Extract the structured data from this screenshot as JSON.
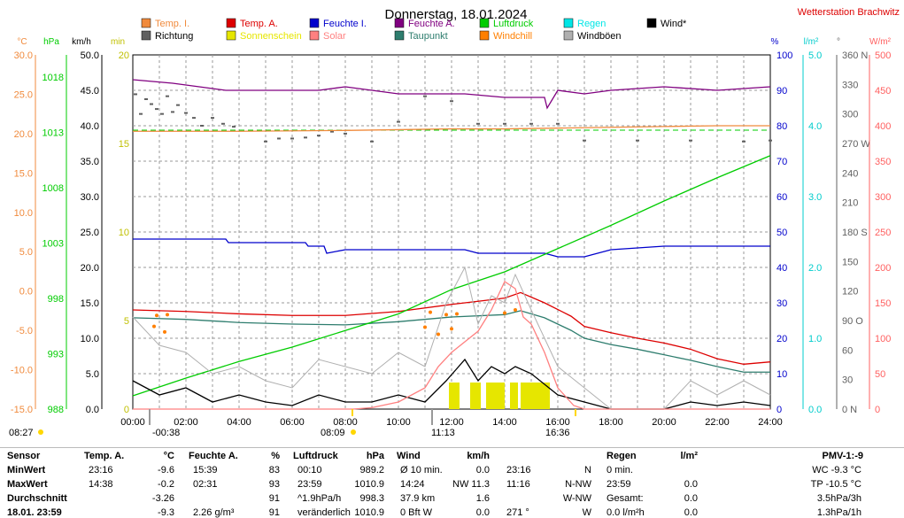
{
  "header": {
    "title": "Donnerstag, 18.01.2024",
    "station": "Wetterstation Brachwitz"
  },
  "colors": {
    "temp_i": "#f08a3c",
    "temp_a": "#dd0000",
    "feuchte_i": "#0000cc",
    "feuchte_a": "#800080",
    "luftdruck": "#00cc00",
    "regen": "#00e6e6",
    "wind": "#000000",
    "richtung": "#606060",
    "sonnenschein": "#e6e600",
    "solar": "#ff8080",
    "taupunkt": "#2e7d6e",
    "windchill": "#ff7f00",
    "windboeen": "#b0b0b0"
  },
  "legend": [
    {
      "label": "Temp. I.",
      "color": "#f08a3c"
    },
    {
      "label": "Temp. A.",
      "color": "#dd0000"
    },
    {
      "label": "Feuchte I.",
      "color": "#0000cc"
    },
    {
      "label": "Feuchte A.",
      "color": "#800080"
    },
    {
      "label": "Luftdruck",
      "color": "#00cc00"
    },
    {
      "label": "Regen",
      "color": "#00e6e6"
    },
    {
      "label": "Wind*",
      "color": "#000000"
    },
    {
      "label": "Richtung",
      "color": "#606060"
    },
    {
      "label": "Sonnenschein",
      "color": "#e6e600"
    },
    {
      "label": "Solar",
      "color": "#ff8080"
    },
    {
      "label": "Taupunkt",
      "color": "#2e7d6e"
    },
    {
      "label": "Windchill",
      "color": "#ff7f00"
    },
    {
      "label": "Windböen",
      "color": "#b0b0b0"
    }
  ],
  "markers": {
    "sunrise": "08:27",
    "sunset": "16:36",
    "moonset": "00:38",
    "moonrise": "11:13",
    "solar_noon": "08:09"
  },
  "chart_data": {
    "type": "line",
    "title": "Donnerstag, 18.01.2024",
    "x_ticks": [
      "00:00",
      "02:00",
      "04:00",
      "06:00",
      "08:00",
      "10:00",
      "12:00",
      "14:00",
      "16:00",
      "18:00",
      "20:00",
      "22:00",
      "24:00"
    ],
    "axes": {
      "temp_c": {
        "label": "°C",
        "range": [
          -15,
          30
        ],
        "ticks": [
          "30.0",
          "25.0",
          "20.0",
          "15.0",
          "10.0",
          "5.0",
          "0.0",
          "-5.0",
          "-10.0",
          "-15.0"
        ]
      },
      "pressure_hpa": {
        "label": "hPa",
        "range": [
          988,
          1020
        ],
        "ticks": [
          "1018",
          "1013",
          "1008",
          "1003",
          "998",
          "993",
          "988"
        ]
      },
      "wind_kmh": {
        "label": "km/h",
        "range": [
          0,
          50
        ],
        "ticks": [
          "50.0",
          "45.0",
          "40.0",
          "35.0",
          "30.0",
          "25.0",
          "20.0",
          "15.0",
          "10.0",
          "5.0",
          "0.0"
        ]
      },
      "sun_min": {
        "label": "min",
        "range": [
          0,
          20
        ],
        "ticks": [
          "20",
          "15",
          "10",
          "5",
          "0"
        ]
      },
      "humidity_pct": {
        "label": "%",
        "range": [
          0,
          100
        ],
        "ticks": [
          "100",
          "90",
          "80",
          "70",
          "60",
          "50",
          "40",
          "30",
          "20",
          "10",
          "0"
        ]
      },
      "rain_lm2": {
        "label": "l/m²",
        "range": [
          0,
          5
        ],
        "ticks": [
          "5.0",
          "4.0",
          "3.0",
          "2.0",
          "1.0",
          "0.0"
        ]
      },
      "direction_deg": {
        "label": "°",
        "range": [
          0,
          360
        ],
        "ticks": [
          "360 N",
          "330",
          "300",
          "270 W",
          "240",
          "210",
          "180 S",
          "150",
          "120",
          "90 O",
          "60",
          "30",
          "0 N"
        ]
      },
      "solar_wm2": {
        "label": "W/m²",
        "range": [
          0,
          500
        ],
        "ticks": [
          "500",
          "450",
          "400",
          "350",
          "300",
          "250",
          "200",
          "150",
          "100",
          "50",
          "0"
        ]
      }
    },
    "series": [
      {
        "name": "Temp. I.",
        "axis": "temp_c",
        "x": [
          0,
          4,
          8,
          10,
          12,
          14,
          16,
          18,
          20,
          22,
          24
        ],
        "y": [
          20.3,
          20.3,
          20.4,
          20.5,
          20.6,
          20.6,
          20.7,
          20.8,
          20.9,
          21.0,
          21.0
        ]
      },
      {
        "name": "Temp. A.",
        "axis": "temp_c",
        "x": [
          0,
          2,
          4,
          6,
          8,
          10,
          12,
          13,
          14,
          14.6,
          15.5,
          16.5,
          17,
          18,
          19,
          20,
          21,
          22,
          23,
          24
        ],
        "y": [
          -2.4,
          -2.6,
          -2.9,
          -3.1,
          -3.1,
          -2.6,
          -1.7,
          -1.3,
          -0.9,
          -0.2,
          -1.5,
          -3.2,
          -4.5,
          -5.3,
          -6.0,
          -6.6,
          -7.4,
          -8.6,
          -9.3,
          -9.0
        ]
      },
      {
        "name": "Taupunkt",
        "axis": "temp_c",
        "x": [
          0,
          2,
          4,
          6,
          8,
          10,
          12,
          14,
          14.6,
          15.5,
          16.5,
          17,
          18,
          19,
          20,
          21,
          22,
          23,
          24
        ],
        "y": [
          -3.4,
          -3.6,
          -4.0,
          -4.2,
          -4.3,
          -3.9,
          -3.3,
          -3.0,
          -2.5,
          -3.4,
          -5.0,
          -6.0,
          -6.8,
          -7.4,
          -8.1,
          -8.8,
          -9.6,
          -10.3,
          -10.3
        ]
      },
      {
        "name": "Feuchte I.",
        "axis": "humidity_pct",
        "x": [
          0,
          3.5,
          3.6,
          6.5,
          6.6,
          7.2,
          7.3,
          8.0,
          10,
          12.5,
          13,
          15.5,
          16,
          17,
          18,
          20,
          22,
          24
        ],
        "y": [
          48,
          48,
          47,
          47,
          46,
          46,
          44,
          45,
          45,
          45,
          44,
          44,
          43,
          43,
          45,
          46,
          46,
          46
        ]
      },
      {
        "name": "Feuchte A.",
        "axis": "humidity_pct",
        "x": [
          0,
          1.5,
          2.5,
          3.5,
          5,
          7,
          8,
          9,
          10,
          11,
          12.5,
          14,
          15.5,
          15.6,
          16,
          17,
          18,
          20,
          22,
          24
        ],
        "y": [
          93,
          92,
          91,
          90,
          90,
          90,
          91,
          90,
          89,
          89,
          89,
          88,
          88,
          85,
          90,
          89,
          90,
          91,
          90,
          91
        ]
      },
      {
        "name": "Luftdruck",
        "axis": "pressure_hpa",
        "x": [
          0,
          2,
          4,
          6,
          8,
          10,
          12,
          14,
          16,
          18,
          20,
          22,
          24
        ],
        "y": [
          989.2,
          990.8,
          992.3,
          993.6,
          995.1,
          996.6,
          998.8,
          1000.4,
          1002.5,
          1004.6,
          1006.8,
          1008.9,
          1010.9
        ]
      },
      {
        "name": "Wind*",
        "axis": "wind_kmh",
        "x": [
          0,
          1,
          2,
          3,
          4,
          5,
          6,
          7,
          8,
          9,
          10,
          11,
          11.8,
          12.5,
          13,
          13.5,
          14,
          14.4,
          15,
          16,
          17,
          18,
          19,
          20,
          21,
          22,
          23,
          24
        ],
        "y": [
          4,
          2,
          3,
          1,
          2,
          1,
          0.5,
          2,
          1,
          1,
          2,
          1,
          4,
          7,
          4,
          6,
          5,
          6,
          5,
          2,
          1,
          0,
          0,
          0,
          1,
          0.5,
          1,
          0.5
        ]
      },
      {
        "name": "Windböen",
        "axis": "wind_kmh",
        "x": [
          0,
          1,
          2,
          3,
          4,
          5,
          6,
          7,
          8,
          9,
          10,
          11,
          11.8,
          12.5,
          13,
          13.5,
          14,
          14.4,
          15,
          16,
          17,
          18,
          19,
          20,
          21,
          22,
          23,
          24
        ],
        "y": [
          13,
          9,
          8,
          5,
          6,
          4,
          3,
          7,
          6,
          5,
          8,
          6,
          15,
          20,
          12,
          16,
          15,
          19,
          14,
          6,
          3,
          0,
          0,
          0,
          4,
          2,
          4,
          2
        ]
      },
      {
        "name": "Solar",
        "axis": "solar_wm2",
        "x": [
          0,
          8.3,
          9,
          10,
          11,
          11.5,
          12,
          13,
          13.5,
          14,
          14.4,
          14.7,
          15,
          15.5,
          16,
          16.6,
          17,
          24
        ],
        "y": [
          0,
          0,
          2,
          10,
          30,
          60,
          80,
          110,
          140,
          180,
          170,
          130,
          120,
          80,
          30,
          5,
          0,
          0
        ]
      }
    ],
    "windchill": {
      "axis": "temp_c",
      "x": [
        0.8,
        0.9,
        1.2,
        1.3,
        11.0,
        11.2,
        11.5,
        11.8,
        12.0,
        12.2,
        14.0,
        14.4
      ],
      "y": [
        -4.5,
        -3.1,
        -5.2,
        -3.0,
        -4.6,
        -2.7,
        -5.5,
        -3.0,
        -4.8,
        -2.9,
        -2.8,
        -2.4
      ]
    },
    "direction": {
      "axis": "direction_deg",
      "points": [
        [
          0.1,
          320
        ],
        [
          0.3,
          300
        ],
        [
          0.5,
          315
        ],
        [
          0.7,
          310
        ],
        [
          0.9,
          305
        ],
        [
          1.1,
          300
        ],
        [
          1.3,
          318
        ],
        [
          1.5,
          302
        ],
        [
          1.7,
          309
        ],
        [
          2.0,
          301
        ],
        [
          2.3,
          296
        ],
        [
          2.6,
          288
        ],
        [
          3.0,
          296
        ],
        [
          3.4,
          290
        ],
        [
          3.8,
          287
        ],
        [
          5.0,
          272
        ],
        [
          5.5,
          275
        ],
        [
          6.0,
          275
        ],
        [
          6.5,
          276
        ],
        [
          7.0,
          278
        ],
        [
          7.5,
          282
        ],
        [
          8.0,
          280
        ],
        [
          9.0,
          272
        ],
        [
          10.0,
          292
        ],
        [
          11.0,
          318
        ],
        [
          12.0,
          313
        ],
        [
          13.0,
          290
        ],
        [
          14.0,
          290
        ],
        [
          15.0,
          290
        ],
        [
          16.0,
          290
        ],
        [
          17.0,
          273
        ],
        [
          19.0,
          273
        ],
        [
          21.0,
          273
        ],
        [
          23.0,
          272
        ],
        [
          24.0,
          273
        ]
      ]
    },
    "sunshine": {
      "axis": "sun_min",
      "blocks": [
        [
          11.9,
          12.3,
          1
        ],
        [
          12.7,
          13.1,
          1
        ],
        [
          13.3,
          14.0,
          1
        ],
        [
          14.2,
          14.5,
          1
        ],
        [
          14.6,
          15.7,
          1
        ]
      ]
    }
  },
  "table": {
    "headers": [
      "Sensor",
      "Temp. A.",
      "°C",
      "Feuchte A.",
      "%",
      "Luftdruck",
      "hPa",
      "Wind",
      "km/h",
      "Regen",
      "l/m²",
      "PMV-1:-9"
    ],
    "rows": [
      {
        "label": "MinWert",
        "t_time": "23:16",
        "t_val": "-9.6",
        "h_time": "15:39",
        "h_val": "83",
        "p_time": "00:10",
        "p_val": "989.2",
        "w_a": "Ø 10 min.",
        "w_b": "0.0",
        "d_time": "23:16",
        "d_dir": "N",
        "r_a": "0 min.",
        "r_b": "",
        "x": "WC -9.3 °C"
      },
      {
        "label": "MaxWert",
        "t_time": "14:38",
        "t_val": "-0.2",
        "h_time": "02:31",
        "h_val": "93",
        "p_time": "23:59",
        "p_val": "1010.9",
        "w_a": "14:24",
        "w_b": "NW 11.3",
        "d_time": "11:16",
        "d_dir": "N-NW",
        "r_a": "23:59",
        "r_b": "0.0",
        "x": "TP -10.5 °C"
      },
      {
        "label": "Durchschnitt",
        "t_time": "",
        "t_val": "-3.26",
        "h_time": "",
        "h_val": "91",
        "p_time": "^1.9hPa/h",
        "p_val": "998.3",
        "w_a": "37.9 km",
        "w_b": "1.6",
        "d_time": "",
        "d_dir": "W-NW",
        "r_a": "Gesamt:",
        "r_b": "0.0",
        "x": "3.5hPa/3h"
      },
      {
        "label": "18.01. 23:59",
        "t_time": "",
        "t_val": "-9.3",
        "h_time": "2.26 g/m³",
        "h_val": "91",
        "p_time": "veränderlich",
        "p_val": "1010.9",
        "w_a": "0 Bft W",
        "w_b": "0.0",
        "d_time": "271 °",
        "d_dir": "W",
        "r_a": "0.0 l/m²h",
        "r_b": "0.0",
        "x": "1.3hPa/1h"
      }
    ]
  }
}
